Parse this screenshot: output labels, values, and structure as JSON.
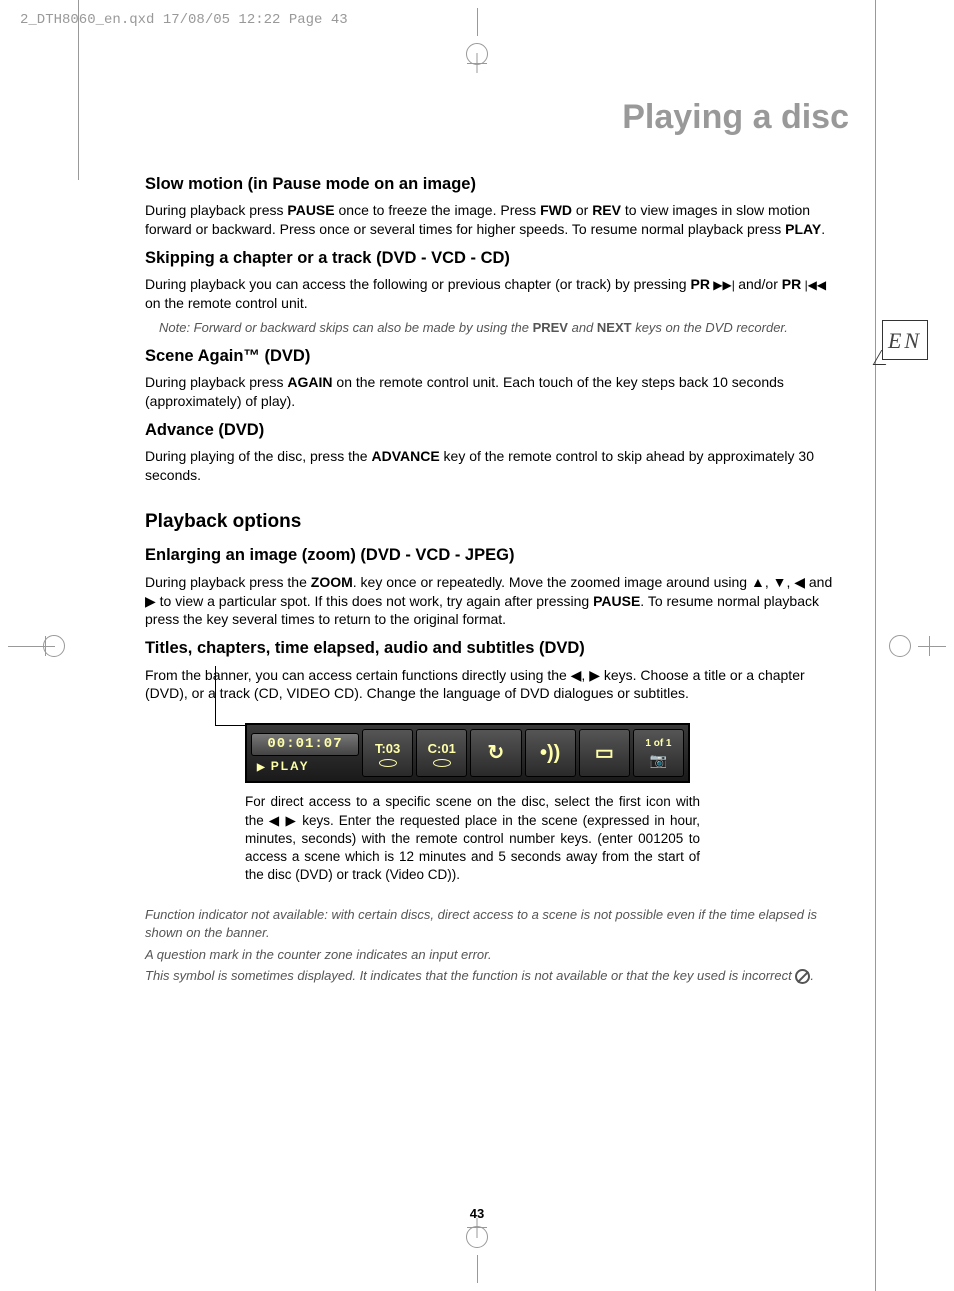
{
  "printHeader": "2_DTH8060_en.qxd  17/08/05  12:22  Page 43",
  "pageTitle": "Playing a disc",
  "langBadge": "EN",
  "pageNumber": "43",
  "sections": {
    "slowMotion": {
      "heading": "Slow motion (in Pause mode on an image)",
      "p1a": "During playback press ",
      "k1": "PAUSE",
      "p1b": " once to freeze the image. Press ",
      "k2": "FWD",
      "p1c": " or ",
      "k3": "REV",
      "p1d": " to view images in slow motion forward or backward. Press once or several times for higher speeds. To resume normal playback press ",
      "k4": "PLAY",
      "p1e": "."
    },
    "skipping": {
      "heading": "Skipping a chapter or a track (DVD - VCD - CD)",
      "p1a": "During playback you can access the following or previous chapter (or track) by pressing ",
      "k1": "PR",
      "icon1": " ▶▶| ",
      "p1b": "and/or ",
      "k2": "PR",
      "icon2": " |◀◀ ",
      "p1c": "on the remote control unit.",
      "note1a": "Note: Forward or backward skips can also be made by using the ",
      "nk1": "PREV",
      "note1b": " and ",
      "nk2": "NEXT",
      "note1c": " keys on the DVD recorder."
    },
    "sceneAgain": {
      "heading": "Scene Again™ (DVD)",
      "p1a": "During playback press ",
      "k1": "AGAIN",
      "p1b": " on the remote control unit. Each touch of the key steps back 10 seconds (approximately) of play)."
    },
    "advance": {
      "heading": "Advance (DVD)",
      "p1a": "During playing of the disc, press the ",
      "k1": "ADVANCE",
      "p1b": " key of the remote control to skip ahead by approximately 30 seconds."
    },
    "playbackOptions": "Playback options",
    "zoom": {
      "heading": "Enlarging an image (zoom) (DVD - VCD - JPEG)",
      "p1a": "During playback press the ",
      "k1": "ZOOM",
      "p1b": ". key once or repeatedly. Move the zoomed image around using ▲, ▼, ◀ and ▶ to view a particular spot. If this does not work, try again after pressing ",
      "k2": "PAUSE",
      "p1c": ". To resume normal playback press the key several times to return to the original format."
    },
    "titles": {
      "heading": "Titles, chapters, time elapsed, audio and subtitles (DVD)",
      "p1": "From the banner, you can access certain functions directly using the ◀, ▶ keys. Choose a title or a chapter (DVD), or a track (CD, VIDEO CD). Change the language of DVD dialogues or subtitles."
    },
    "osd": {
      "time": "00:01:07",
      "play": "PLAY",
      "t": "T:03",
      "c": "C:01",
      "of": "1 of 1"
    },
    "caption": "For direct access to a specific scene on the disc, select the first icon with the ◀ ▶ keys. Enter the requested place in the scene (expressed in hour, minutes, seconds) with the remote control number keys. (enter 001205 to access a scene which is 12 minutes and 5 seconds away from the start of the disc (DVD) or track (Video CD)).",
    "footnotes": {
      "f1": "Function indicator not available: with certain discs, direct access to a scene is not possible even if the time elapsed is shown on the banner.",
      "f2": "A question mark in the counter zone indicates an input error.",
      "f3a": "This symbol is sometimes displayed. It indicates that the function is not available or that the key used is incorrect ",
      "f3b": "."
    }
  }
}
